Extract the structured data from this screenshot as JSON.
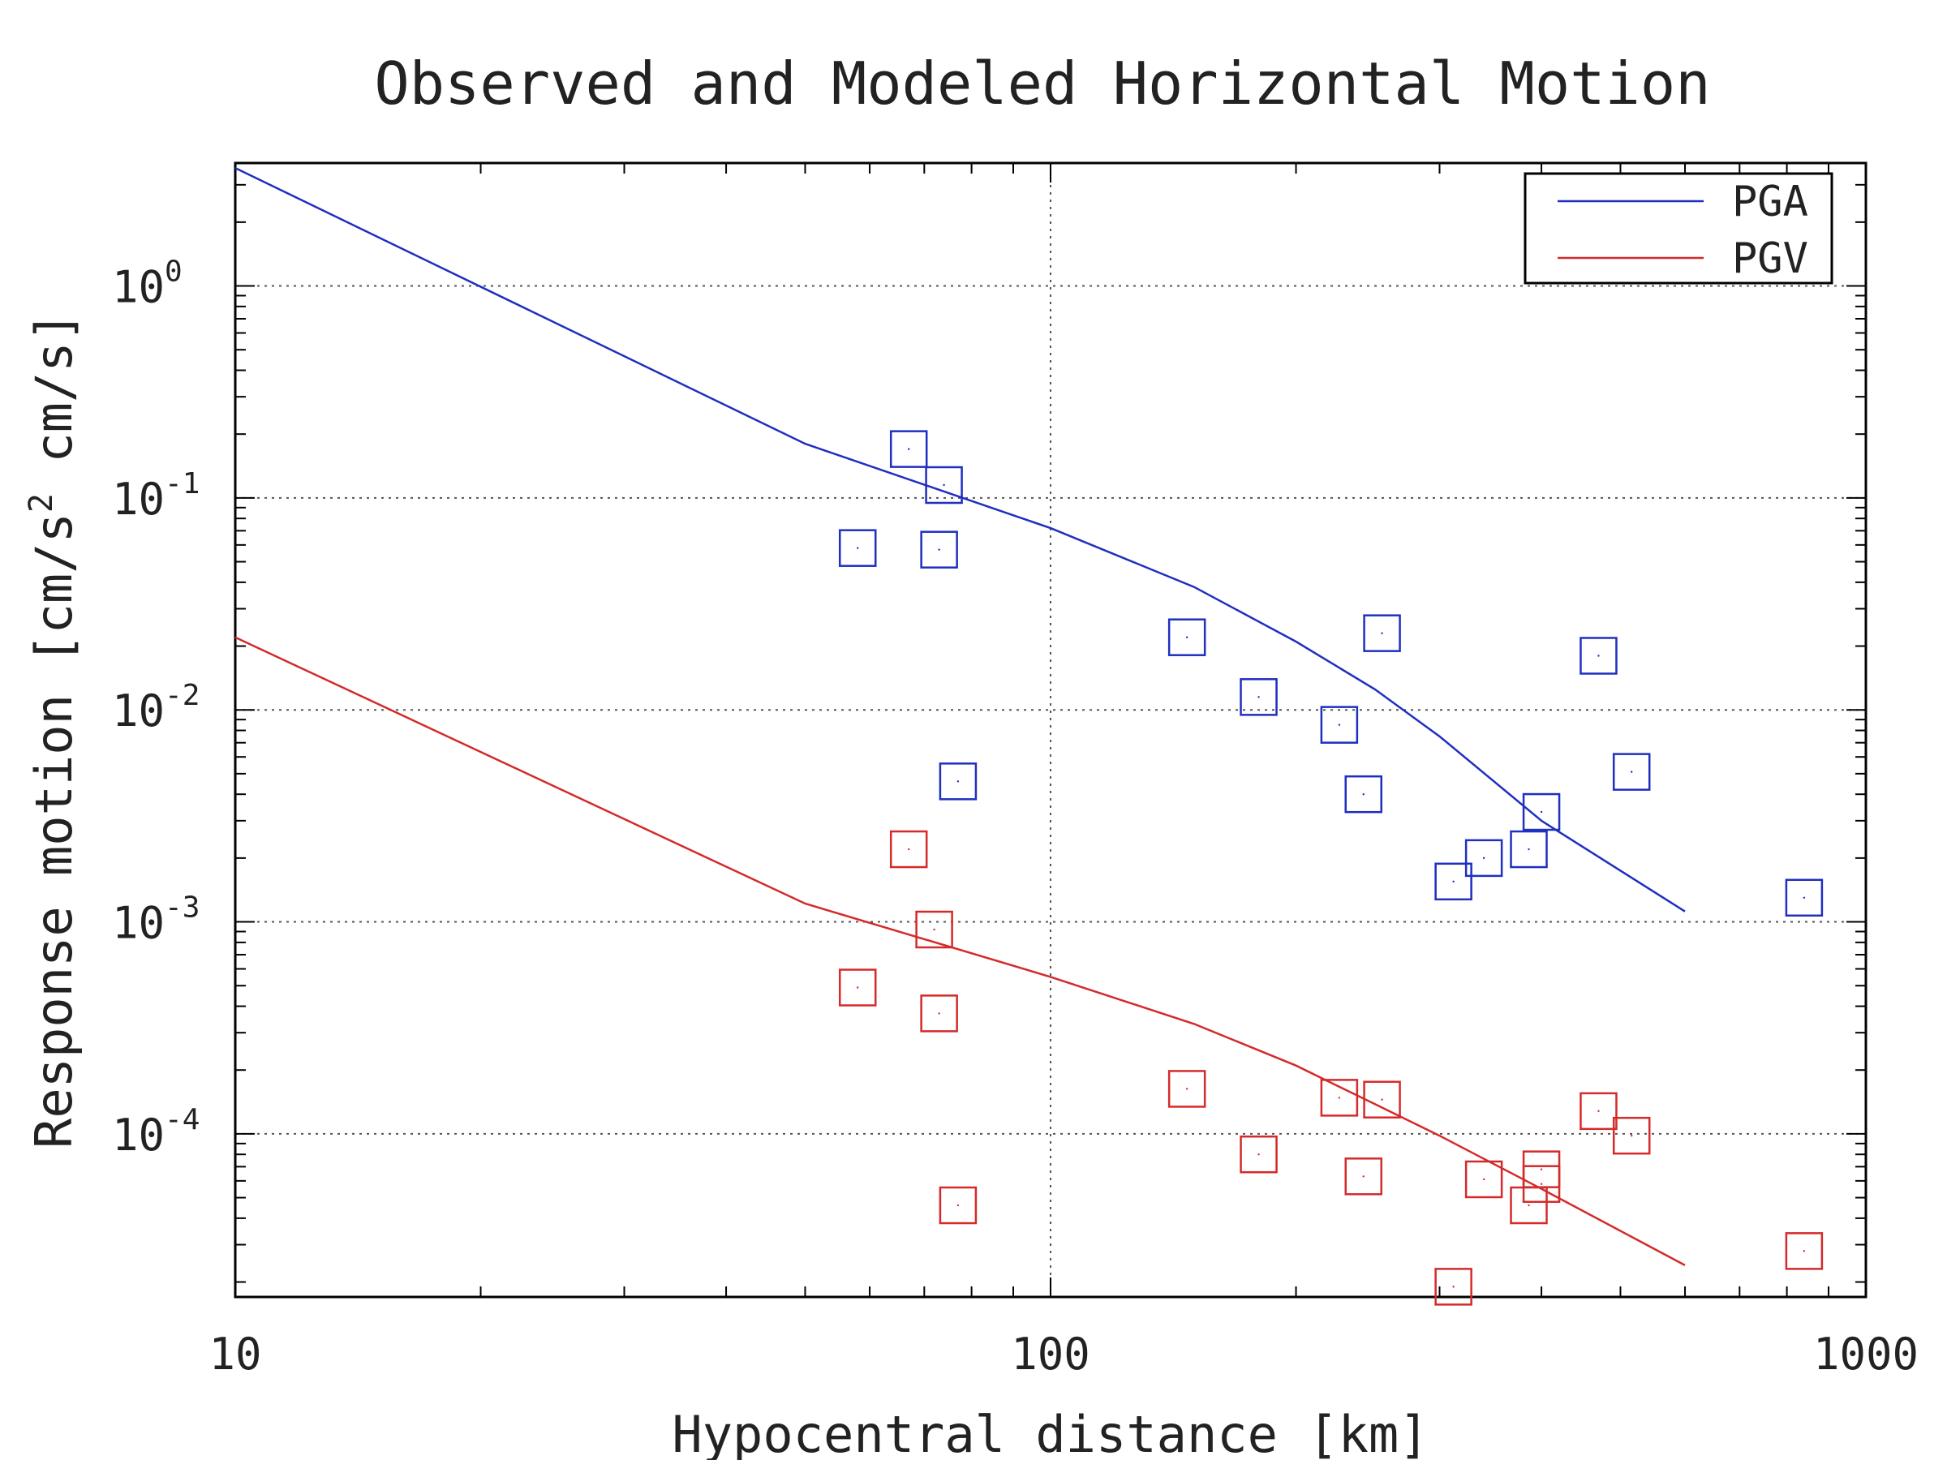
{
  "chart_data": {
    "type": "scatter",
    "title": "Observed and Modeled Horizontal Motion",
    "xlabel": "Hypocentral distance [km]",
    "ylabel": "Response motion [cm/s2 cm/s]",
    "ylabel_parts": {
      "pre": "Response motion [cm/s",
      "sup": "2",
      "post": " cm/s]"
    },
    "xscale": "log",
    "yscale": "log",
    "xlim": [
      10,
      1000
    ],
    "ylim": [
      1.7e-05,
      3.8
    ],
    "x_ticks": [
      {
        "value": 10,
        "label": "10"
      },
      {
        "value": 100,
        "label": "100"
      },
      {
        "value": 1000,
        "label": "1000"
      }
    ],
    "y_ticks": [
      {
        "value": 1,
        "base": "10",
        "exp": "0"
      },
      {
        "value": 0.1,
        "base": "10",
        "exp": "-1"
      },
      {
        "value": 0.01,
        "base": "10",
        "exp": "-2"
      },
      {
        "value": 0.001,
        "base": "10",
        "exp": "-3"
      },
      {
        "value": 0.0001,
        "base": "10",
        "exp": "-4"
      }
    ],
    "grid": "major dotted",
    "legend": {
      "position": "top-right"
    },
    "series": [
      {
        "name": "PGA",
        "color": "#1f2fbf",
        "model_line": {
          "x": [
            10,
            50,
            100,
            150,
            200,
            250,
            300,
            400,
            600
          ],
          "y": [
            3.6,
            0.18,
            0.072,
            0.038,
            0.021,
            0.0125,
            0.0075,
            0.003,
            0.00112
          ]
        },
        "observed": {
          "x": [
            58,
            67,
            74,
            73,
            77,
            147,
            180,
            226,
            242,
            255,
            312,
            340,
            386,
            400,
            470,
            516,
            840
          ],
          "y": [
            0.058,
            0.17,
            0.115,
            0.057,
            0.0046,
            0.022,
            0.0115,
            0.0085,
            0.004,
            0.023,
            0.00155,
            0.002,
            0.0022,
            0.0033,
            0.018,
            0.0051,
            0.0013
          ]
        }
      },
      {
        "name": "PGV",
        "color": "#d42a2a",
        "model_line": {
          "x": [
            10,
            50,
            100,
            150,
            200,
            250,
            300,
            400,
            600
          ],
          "y": [
            0.022,
            0.00122,
            0.00055,
            0.00033,
            0.00021,
            0.000138,
            9.8e-05,
            5.5e-05,
            2.4e-05
          ]
        },
        "observed": {
          "x": [
            58,
            67,
            72,
            73,
            77,
            147,
            180,
            226,
            242,
            255,
            312,
            340,
            386,
            400,
            400,
            470,
            516,
            840
          ],
          "y": [
            0.00049,
            0.0022,
            0.00092,
            0.00037,
            4.6e-05,
            0.000163,
            8e-05,
            0.000148,
            6.3e-05,
            0.000145,
            1.9e-05,
            6.1e-05,
            4.6e-05,
            6.8e-05,
            5.8e-05,
            0.000128,
            9.8e-05,
            2.8e-05
          ]
        }
      }
    ]
  }
}
